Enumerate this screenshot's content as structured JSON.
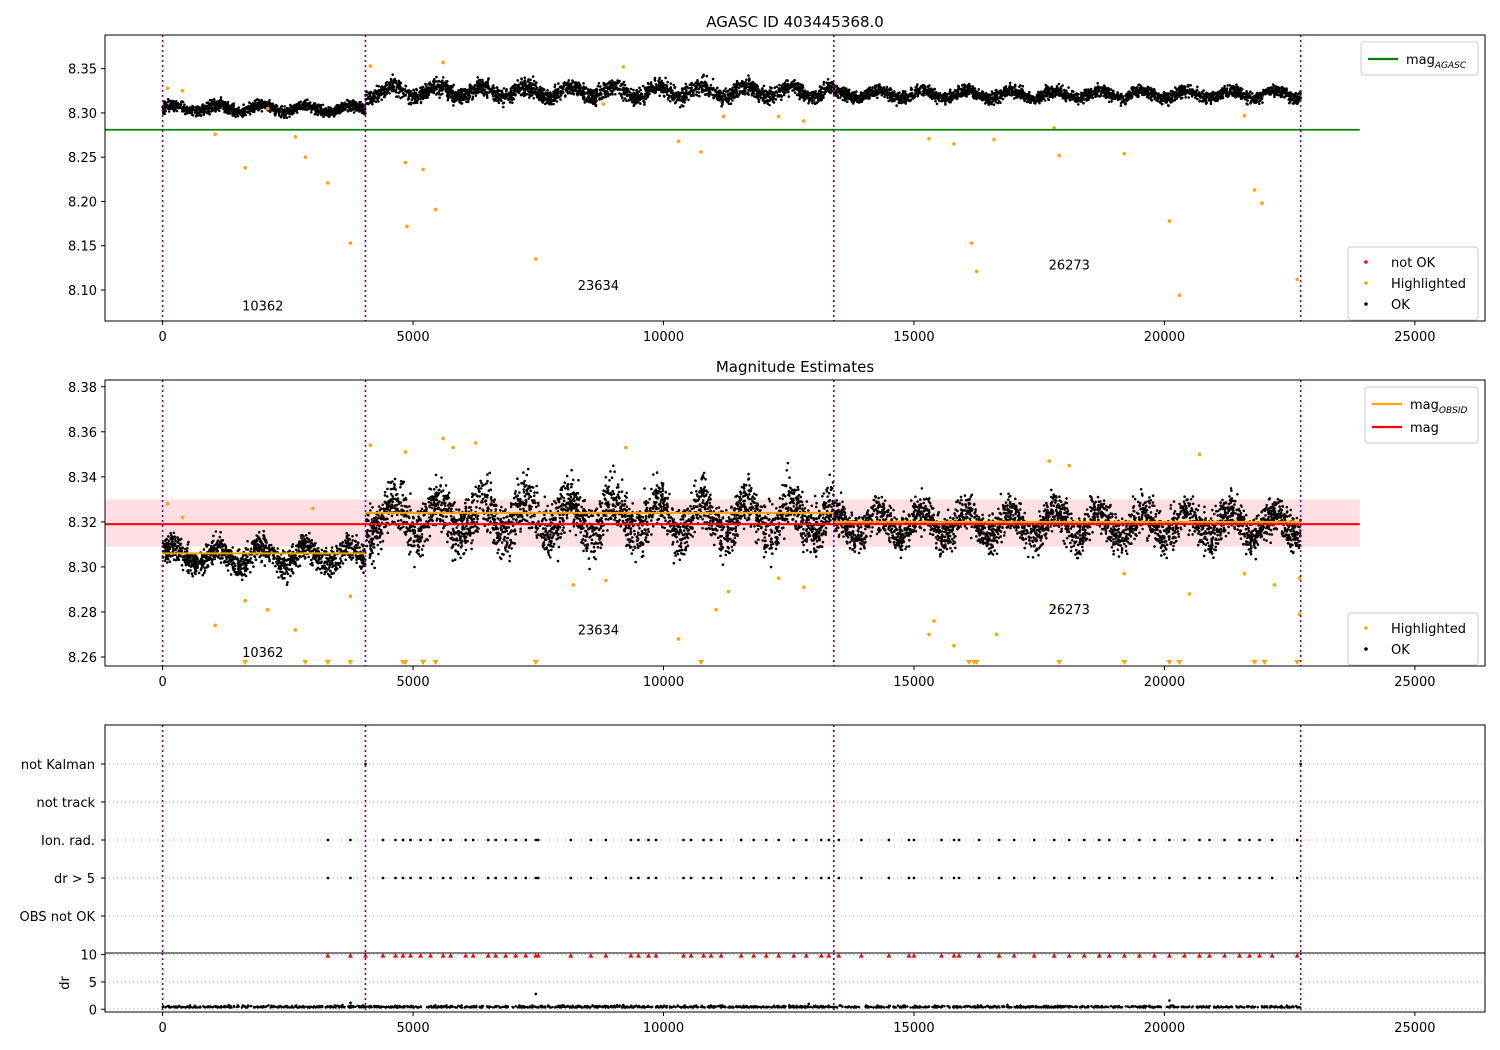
{
  "chart_data": [
    {
      "id": "p1",
      "type": "scatter",
      "title": "AGASC ID 403445368.0",
      "xlabel": "",
      "ylabel": "",
      "xlim": [
        -1150,
        26400
      ],
      "ylim": [
        8.065,
        8.388
      ],
      "xticks": [
        0,
        5000,
        10000,
        15000,
        20000,
        25000
      ],
      "yticks": [
        8.1,
        8.15,
        8.2,
        8.25,
        8.3,
        8.35
      ],
      "ytick_labels": [
        "8.10",
        "8.15",
        "8.20",
        "8.25",
        "8.30",
        "8.35"
      ],
      "obsid_boundaries": [
        0,
        4050,
        13400,
        22720
      ],
      "obsid_labels": [
        {
          "text": "10362",
          "x": 2000,
          "y": 8.077
        },
        {
          "text": "23634",
          "x": 8700,
          "y": 8.1
        },
        {
          "text": "26273",
          "x": 18100,
          "y": 8.123
        }
      ],
      "lines": [
        {
          "name": "mag_AGASC",
          "color": "#008000",
          "x": [
            -1150,
            23900
          ],
          "y": [
            8.281,
            8.281
          ]
        }
      ],
      "ok_segments": [
        {
          "x": [
            0,
            4050
          ],
          "center": 8.305,
          "spread": 0.008,
          "n": 1200
        },
        {
          "x": [
            4050,
            13400
          ],
          "center": 8.324,
          "spread": 0.012,
          "n": 2600
        },
        {
          "x": [
            13400,
            22720
          ],
          "center": 8.321,
          "spread": 0.009,
          "n": 2600
        }
      ],
      "highlighted_points": [
        [
          100,
          8.328
        ],
        [
          400,
          8.325
        ],
        [
          1050,
          8.276
        ],
        [
          1650,
          8.238
        ],
        [
          2100,
          8.305
        ],
        [
          2650,
          8.273
        ],
        [
          2850,
          8.25
        ],
        [
          3300,
          8.221
        ],
        [
          3750,
          8.153
        ],
        [
          4150,
          8.353
        ],
        [
          4850,
          8.244
        ],
        [
          4880,
          8.172
        ],
        [
          5200,
          8.236
        ],
        [
          5450,
          8.191
        ],
        [
          5600,
          8.357
        ],
        [
          7450,
          8.135
        ],
        [
          8800,
          8.31
        ],
        [
          9200,
          8.352
        ],
        [
          10300,
          8.268
        ],
        [
          10750,
          8.256
        ],
        [
          11200,
          8.296
        ],
        [
          12300,
          8.296
        ],
        [
          12800,
          8.291
        ],
        [
          15300,
          8.271
        ],
        [
          15800,
          8.265
        ],
        [
          16150,
          8.153
        ],
        [
          16250,
          8.121
        ],
        [
          16600,
          8.27
        ],
        [
          17800,
          8.283
        ],
        [
          17900,
          8.252
        ],
        [
          19200,
          8.254
        ],
        [
          20100,
          8.178
        ],
        [
          20300,
          8.094
        ],
        [
          21800,
          8.213
        ],
        [
          21950,
          8.198
        ],
        [
          22650,
          8.112
        ],
        [
          21600,
          8.297
        ]
      ],
      "legend_top": [
        {
          "label": "mag",
          "sub": "AGASC",
          "color": "#008000"
        }
      ],
      "legend_bottom": [
        {
          "label": "not OK",
          "color": "#ff0000"
        },
        {
          "label": "Highlighted",
          "color": "#ffa500"
        },
        {
          "label": "OK",
          "color": "#000000"
        }
      ]
    },
    {
      "id": "p2",
      "type": "scatter",
      "title": "Magnitude Estimates",
      "xlabel": "",
      "ylabel": "",
      "xlim": [
        -1150,
        26400
      ],
      "ylim": [
        8.256,
        8.383
      ],
      "xticks": [
        0,
        5000,
        10000,
        15000,
        20000,
        25000
      ],
      "yticks": [
        8.26,
        8.28,
        8.3,
        8.32,
        8.34,
        8.36,
        8.38
      ],
      "ytick_labels": [
        "8.26",
        "8.28",
        "8.30",
        "8.32",
        "8.34",
        "8.36",
        "8.38"
      ],
      "obsid_boundaries": [
        0,
        4050,
        13400,
        22720
      ],
      "obsid_labels": [
        {
          "text": "10362",
          "x": 2000,
          "y": 8.26
        },
        {
          "text": "23634",
          "x": 8700,
          "y": 8.27
        },
        {
          "text": "26273",
          "x": 18100,
          "y": 8.279
        }
      ],
      "band": {
        "x": [
          -1150,
          23900
        ],
        "y": [
          8.309,
          8.33
        ],
        "color": "#ffc0c8"
      },
      "lines": [
        {
          "name": "mag",
          "color": "#ff0000",
          "x": [
            -1150,
            23900
          ],
          "y": [
            8.319,
            8.319
          ]
        },
        {
          "name": "mag_OBSID",
          "color": "#ffa500",
          "x": [
            0,
            4050
          ],
          "y": [
            8.306,
            8.306
          ]
        },
        {
          "name": "mag_OBSID",
          "color": "#ffa500",
          "x": [
            4050,
            13400
          ],
          "y": [
            8.324,
            8.324
          ]
        },
        {
          "name": "mag_OBSID",
          "color": "#ffa500",
          "x": [
            13400,
            22720
          ],
          "y": [
            8.32,
            8.32
          ]
        }
      ],
      "ok_segments": [
        {
          "x": [
            0,
            4050
          ],
          "center": 8.305,
          "spread": 0.008,
          "n": 1200
        },
        {
          "x": [
            4050,
            13400
          ],
          "center": 8.322,
          "spread": 0.015,
          "n": 2800
        },
        {
          "x": [
            13400,
            22720
          ],
          "center": 8.319,
          "spread": 0.011,
          "n": 2800
        }
      ],
      "highlighted_points": [
        [
          100,
          8.328
        ],
        [
          400,
          8.322
        ],
        [
          1050,
          8.274
        ],
        [
          1650,
          8.285
        ],
        [
          2100,
          8.281
        ],
        [
          2650,
          8.272
        ],
        [
          3000,
          8.326
        ],
        [
          3750,
          8.287
        ],
        [
          4150,
          8.354
        ],
        [
          4850,
          8.351
        ],
        [
          5600,
          8.357
        ],
        [
          5800,
          8.353
        ],
        [
          6250,
          8.355
        ],
        [
          8200,
          8.292
        ],
        [
          8850,
          8.294
        ],
        [
          9250,
          8.353
        ],
        [
          10300,
          8.268
        ],
        [
          11050,
          8.281
        ],
        [
          11300,
          8.289
        ],
        [
          12300,
          8.295
        ],
        [
          12800,
          8.291
        ],
        [
          15300,
          8.27
        ],
        [
          15400,
          8.276
        ],
        [
          15800,
          8.265
        ],
        [
          16650,
          8.27
        ],
        [
          17800,
          8.282
        ],
        [
          17700,
          8.347
        ],
        [
          18100,
          8.345
        ],
        [
          19200,
          8.297
        ],
        [
          20500,
          8.288
        ],
        [
          20700,
          8.35
        ],
        [
          21600,
          8.297
        ],
        [
          22200,
          8.292
        ],
        [
          22700,
          8.279
        ],
        [
          22700,
          8.295
        ]
      ],
      "clipped_low_points": [
        1650,
        2850,
        3300,
        3750,
        4800,
        4850,
        5200,
        5450,
        7450,
        10750,
        16100,
        16200,
        16250,
        17900,
        19200,
        20100,
        20300,
        21800,
        22000,
        22650
      ],
      "legend_top": [
        {
          "label": "mag",
          "sub": "OBSID",
          "color": "#ffa500"
        },
        {
          "label": "mag",
          "sub": "",
          "color": "#ff0000"
        }
      ],
      "legend_bottom": [
        {
          "label": "Highlighted",
          "color": "#ffa500"
        },
        {
          "label": "OK",
          "color": "#000000"
        }
      ]
    },
    {
      "id": "p3",
      "type": "scatter",
      "title": "",
      "xlabel": "",
      "ylabel": "",
      "xlim": [
        -1150,
        26400
      ],
      "categories": [
        "not Kalman",
        "not track",
        "Ion. rad.",
        "dr > 5",
        "OBS not OK"
      ],
      "obsid_boundaries": [
        0,
        4050,
        13400,
        22720
      ],
      "flag_rows": {
        "not Kalman": [
          4050,
          22720
        ],
        "not track": [],
        "Ion. rad.": [
          3300,
          3750,
          4400,
          4650,
          4800,
          4950,
          5150,
          5350,
          5600,
          5750,
          6050,
          6200,
          6500,
          6650,
          6850,
          7050,
          7250,
          7450,
          7500,
          8150,
          8550,
          8850,
          9350,
          9500,
          9700,
          9850,
          10400,
          10550,
          10800,
          10950,
          11150,
          11550,
          11800,
          12050,
          12300,
          12600,
          12850,
          13150,
          13300,
          13500,
          13950,
          14500,
          14900,
          15000,
          15550,
          15800,
          15900,
          16300,
          16700,
          17000,
          17400,
          17800,
          18100,
          18400,
          18700,
          18900,
          19200,
          19500,
          19800,
          20100,
          20400,
          20700,
          20900,
          21200,
          21500,
          21700,
          21900,
          22150,
          22650
        ],
        "dr > 5": [
          3300,
          3750,
          4400,
          4650,
          4800,
          4950,
          5150,
          5350,
          5600,
          5750,
          6050,
          6200,
          6500,
          6650,
          6850,
          7050,
          7250,
          7450,
          7500,
          8150,
          8550,
          8850,
          9350,
          9500,
          9700,
          9850,
          10400,
          10550,
          10800,
          10950,
          11150,
          11550,
          11800,
          12050,
          12300,
          12600,
          12850,
          13150,
          13300,
          13500,
          13950,
          14500,
          14900,
          15000,
          15550,
          15800,
          15900,
          16300,
          16700,
          17000,
          17400,
          17800,
          18100,
          18400,
          18700,
          18900,
          19200,
          19500,
          19800,
          20100,
          20400,
          20700,
          20900,
          21200,
          21500,
          21700,
          21900,
          22150,
          22650
        ],
        "OBS not OK": []
      }
    },
    {
      "id": "p4",
      "type": "scatter",
      "title": "",
      "xlabel": "",
      "ylabel": "dr",
      "xlim": [
        -1150,
        26400
      ],
      "ylim": [
        -0.5,
        10.3
      ],
      "xticks": [
        0,
        5000,
        10000,
        15000,
        20000,
        25000
      ],
      "yticks": [
        0,
        5,
        10
      ],
      "ytick_labels": [
        "0",
        "5",
        "10"
      ],
      "obsid_boundaries": [
        0,
        4050,
        13400,
        22720
      ],
      "clipped_high_x": [
        3300,
        3750,
        4050,
        4400,
        4650,
        4800,
        4950,
        5150,
        5350,
        5600,
        5750,
        6050,
        6200,
        6500,
        6650,
        6850,
        7050,
        7250,
        7450,
        7500,
        8150,
        8550,
        8850,
        9350,
        9500,
        9700,
        9850,
        10400,
        10550,
        10800,
        10950,
        11150,
        11550,
        11800,
        12050,
        12300,
        12600,
        12850,
        13150,
        13300,
        13500,
        13950,
        14500,
        14900,
        15000,
        15550,
        15800,
        15900,
        16300,
        16700,
        17000,
        17400,
        17800,
        18100,
        18400,
        18700,
        18900,
        19200,
        19500,
        19800,
        20100,
        20400,
        20700,
        20900,
        21200,
        21500,
        21700,
        21900,
        22150,
        22650
      ],
      "dr_baseline": {
        "x": [
          0,
          22720
        ],
        "center": 0.3,
        "spread": 0.25
      },
      "dr_outliers": [
        [
          7450,
          2.8
        ],
        [
          20100,
          1.6
        ],
        [
          12900,
          1.0
        ],
        [
          3750,
          1.2
        ]
      ]
    }
  ]
}
